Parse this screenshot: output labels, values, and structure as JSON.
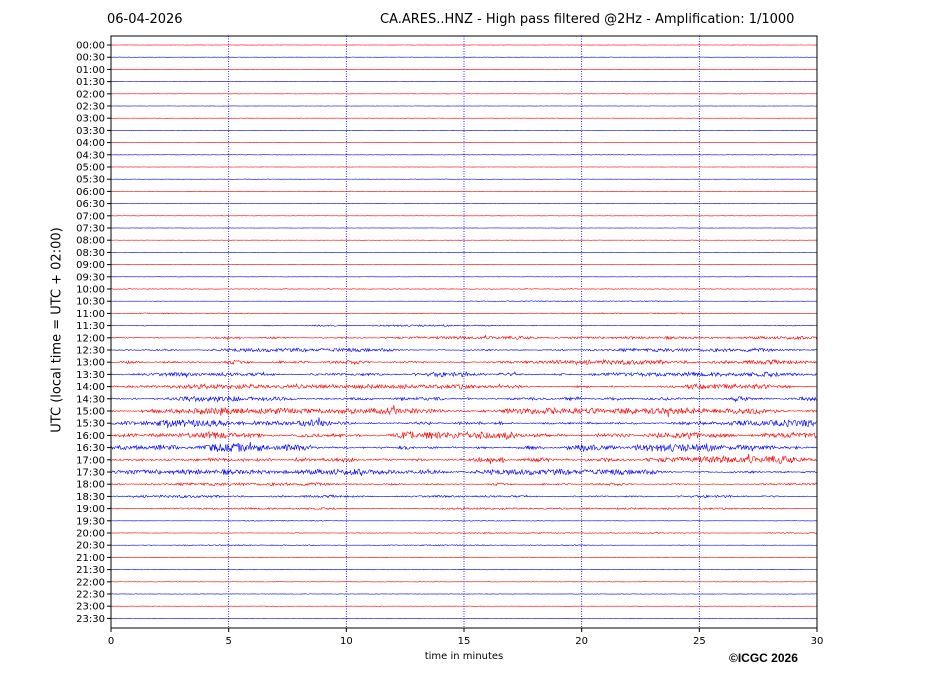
{
  "header": {
    "date": "06-04-2026",
    "title": "CA.ARES..HNZ - High pass filtered @2Hz - Amplification: 1/1000"
  },
  "footer": {
    "credit": "©ICGC 2026"
  },
  "chart_data": {
    "type": "line",
    "title": "CA.ARES..HNZ - High pass filtered @2Hz - Amplification: 1/1000",
    "xlabel": "time in minutes",
    "ylabel": "UTC (local time = UTC + 02:00)",
    "xlim": [
      0,
      30
    ],
    "x_ticks": [
      0,
      5,
      10,
      15,
      20,
      25,
      30
    ],
    "vertical_grid": "dotted at 5-minute intervals",
    "trace_colors": [
      "#ff0000",
      "#0000ff"
    ],
    "color_pattern": "alternating red (hh:00 rows) and blue (hh:30 rows)",
    "rows": [
      {
        "label": "00:00",
        "activity": 0.02
      },
      {
        "label": "00:30",
        "activity": 0.02
      },
      {
        "label": "01:00",
        "activity": 0.02
      },
      {
        "label": "01:30",
        "activity": 0.02
      },
      {
        "label": "02:00",
        "activity": 0.02
      },
      {
        "label": "02:30",
        "activity": 0.02
      },
      {
        "label": "03:00",
        "activity": 0.02
      },
      {
        "label": "03:30",
        "activity": 0.02
      },
      {
        "label": "04:00",
        "activity": 0.02
      },
      {
        "label": "04:30",
        "activity": 0.03
      },
      {
        "label": "05:00",
        "activity": 0.02
      },
      {
        "label": "05:30",
        "activity": 0.02
      },
      {
        "label": "06:00",
        "activity": 0.03
      },
      {
        "label": "06:30",
        "activity": 0.02
      },
      {
        "label": "07:00",
        "activity": 0.02
      },
      {
        "label": "07:30",
        "activity": 0.02
      },
      {
        "label": "08:00",
        "activity": 0.02
      },
      {
        "label": "08:30",
        "activity": 0.02
      },
      {
        "label": "09:00",
        "activity": 0.02
      },
      {
        "label": "09:30",
        "activity": 0.02
      },
      {
        "label": "10:00",
        "activity": 0.05
      },
      {
        "label": "10:30",
        "activity": 0.08
      },
      {
        "label": "11:00",
        "activity": 0.1
      },
      {
        "label": "11:30",
        "activity": 0.18
      },
      {
        "label": "12:00",
        "activity": 0.3
      },
      {
        "label": "12:30",
        "activity": 0.35
      },
      {
        "label": "13:00",
        "activity": 0.45
      },
      {
        "label": "13:30",
        "activity": 0.45
      },
      {
        "label": "14:00",
        "activity": 0.45
      },
      {
        "label": "14:30",
        "activity": 0.55
      },
      {
        "label": "15:00",
        "activity": 0.6
      },
      {
        "label": "15:30",
        "activity": 0.65
      },
      {
        "label": "16:00",
        "activity": 0.75
      },
      {
        "label": "16:30",
        "activity": 0.8
      },
      {
        "label": "17:00",
        "activity": 0.75
      },
      {
        "label": "17:30",
        "activity": 0.55
      },
      {
        "label": "18:00",
        "activity": 0.3
      },
      {
        "label": "18:30",
        "activity": 0.25
      },
      {
        "label": "19:00",
        "activity": 0.18
      },
      {
        "label": "19:30",
        "activity": 0.08
      },
      {
        "label": "20:00",
        "activity": 0.1
      },
      {
        "label": "20:30",
        "activity": 0.1
      },
      {
        "label": "21:00",
        "activity": 0.04
      },
      {
        "label": "21:30",
        "activity": 0.04
      },
      {
        "label": "22:00",
        "activity": 0.03
      },
      {
        "label": "22:30",
        "activity": 0.03
      },
      {
        "label": "23:00",
        "activity": 0.02
      },
      {
        "label": "23:30",
        "activity": 0.02
      }
    ]
  }
}
